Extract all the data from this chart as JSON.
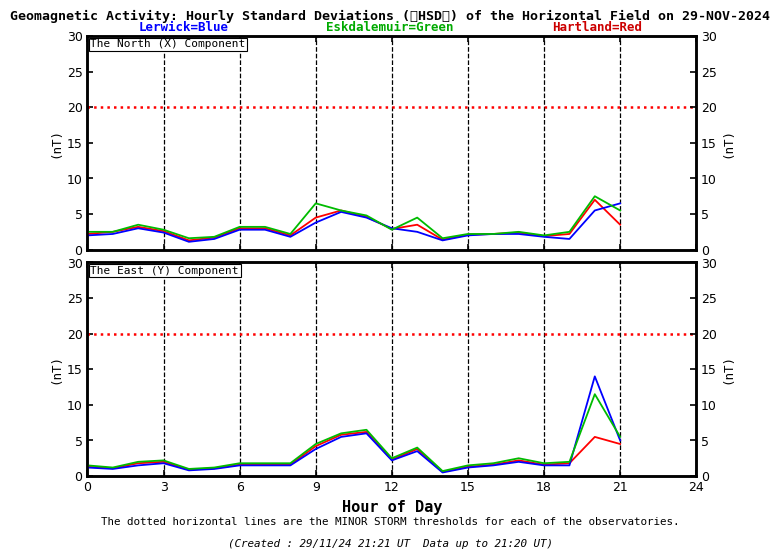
{
  "title_part1": "Geomagnetic Activity: Hourly Standard Deviations (",
  "title_italic": "HSD",
  "title_part2": ") of the Horizontal Field on 29-NOV-2024",
  "subtitle_lerwick": "Lerwick=Blue",
  "subtitle_eskdalemuir": "Eskdalemuir=Green",
  "subtitle_hartland": "Hartland=Red",
  "footer1": "The dotted horizontal lines are the MINOR STORM thresholds for each of the observatories.",
  "footer2": "(Created : 29/11/24 21:21 UT  Data up to 21:20 UT)",
  "xlabel": "Hour of Day",
  "ylabel": "(nT)",
  "ylim": [
    0,
    30
  ],
  "xlim": [
    0,
    24
  ],
  "dashed_line_x": [
    3,
    6,
    9,
    12,
    15,
    18,
    21
  ],
  "threshold_y": 20,
  "panel1_label": "The North (X) Component",
  "panel2_label": "The East (Y) Component",
  "hours": [
    0,
    1,
    2,
    3,
    4,
    5,
    6,
    7,
    8,
    9,
    10,
    11,
    12,
    13,
    14,
    15,
    16,
    17,
    18,
    19,
    20,
    21
  ],
  "x_blue": [
    2.0,
    2.2,
    3.0,
    2.4,
    1.1,
    1.5,
    2.8,
    2.8,
    1.8,
    3.8,
    5.3,
    4.5,
    3.0,
    2.5,
    1.3,
    2.0,
    2.2,
    2.2,
    1.8,
    1.5,
    5.5,
    6.5
  ],
  "x_green": [
    2.5,
    2.5,
    3.5,
    2.8,
    1.6,
    1.8,
    3.2,
    3.2,
    2.2,
    6.5,
    5.5,
    4.8,
    2.8,
    4.5,
    1.6,
    2.2,
    2.2,
    2.5,
    2.0,
    2.5,
    7.5,
    5.5
  ],
  "x_red": [
    2.2,
    2.5,
    3.2,
    2.6,
    1.3,
    1.7,
    3.0,
    3.0,
    2.0,
    4.5,
    5.5,
    4.6,
    2.9,
    3.5,
    1.4,
    2.1,
    2.2,
    2.4,
    1.9,
    2.2,
    7.0,
    3.5
  ],
  "y_blue": [
    1.2,
    1.0,
    1.5,
    1.8,
    0.8,
    1.0,
    1.5,
    1.5,
    1.5,
    3.8,
    5.5,
    6.0,
    2.2,
    3.5,
    0.5,
    1.2,
    1.5,
    2.0,
    1.5,
    1.5,
    14.0,
    5.0
  ],
  "y_green": [
    1.5,
    1.2,
    2.0,
    2.2,
    1.0,
    1.2,
    1.8,
    1.8,
    1.8,
    4.5,
    6.0,
    6.5,
    2.5,
    4.0,
    0.7,
    1.5,
    1.8,
    2.5,
    1.8,
    2.0,
    11.5,
    5.5
  ],
  "y_red": [
    1.3,
    1.1,
    1.8,
    2.0,
    0.9,
    1.1,
    1.6,
    1.6,
    1.6,
    4.2,
    5.8,
    6.2,
    2.3,
    3.8,
    0.6,
    1.3,
    1.6,
    2.2,
    1.6,
    1.8,
    5.5,
    4.5
  ],
  "color_blue": "#0000ff",
  "color_green": "#00bb00",
  "color_red": "#ff0000",
  "color_threshold": "#ff0000",
  "color_dashed": "#000000",
  "bg_color": "#ffffff",
  "lerwick_color": "#0000ff",
  "eskdalemuir_color": "#00aa00",
  "hartland_color": "#cc0000"
}
